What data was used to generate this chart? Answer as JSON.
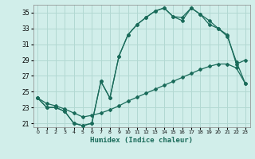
{
  "xlabel": "Humidex (Indice chaleur)",
  "bg_color": "#d1eeea",
  "grid_color": "#b2d8d2",
  "line_color": "#1a6b5a",
  "xlim": [
    -0.5,
    23.5
  ],
  "ylim": [
    20.5,
    36.0
  ],
  "yticks": [
    21,
    23,
    25,
    27,
    29,
    31,
    33,
    35
  ],
  "xticks": [
    0,
    1,
    2,
    3,
    4,
    5,
    6,
    7,
    8,
    9,
    10,
    11,
    12,
    13,
    14,
    15,
    16,
    17,
    18,
    19,
    20,
    21,
    22,
    23
  ],
  "curve1_x": [
    0,
    1,
    2,
    3,
    4,
    5,
    6,
    7,
    8,
    9,
    10,
    11,
    12,
    13,
    14,
    15,
    16,
    17,
    18,
    19,
    20,
    21,
    22,
    23
  ],
  "curve1_y": [
    24.2,
    23.0,
    23.0,
    22.5,
    21.0,
    20.7,
    21.0,
    26.3,
    24.2,
    29.5,
    32.2,
    33.5,
    34.4,
    35.2,
    35.6,
    34.5,
    34.4,
    35.6,
    34.8,
    34.0,
    33.0,
    32.0,
    28.8,
    26.0
  ],
  "curve2_x": [
    0,
    1,
    2,
    3,
    4,
    5,
    6,
    7,
    8,
    9,
    10,
    11,
    12,
    13,
    14,
    15,
    16,
    17,
    18,
    19,
    20,
    21,
    22,
    23
  ],
  "curve2_y": [
    24.2,
    23.0,
    23.0,
    22.5,
    21.0,
    20.7,
    21.0,
    26.3,
    24.2,
    29.5,
    32.2,
    33.5,
    34.4,
    35.2,
    35.6,
    34.5,
    34.0,
    35.6,
    34.8,
    33.5,
    33.0,
    32.2,
    28.5,
    29.0
  ],
  "curve3_x": [
    0,
    1,
    2,
    3,
    4,
    5,
    6,
    7,
    8,
    9,
    10,
    11,
    12,
    13,
    14,
    15,
    16,
    17,
    18,
    19,
    20,
    21,
    22,
    23
  ],
  "curve3_y": [
    24.2,
    23.5,
    23.2,
    22.8,
    22.3,
    21.8,
    22.0,
    22.3,
    22.7,
    23.2,
    23.8,
    24.3,
    24.8,
    25.3,
    25.8,
    26.3,
    26.8,
    27.3,
    27.8,
    28.2,
    28.5,
    28.5,
    28.0,
    26.0
  ]
}
